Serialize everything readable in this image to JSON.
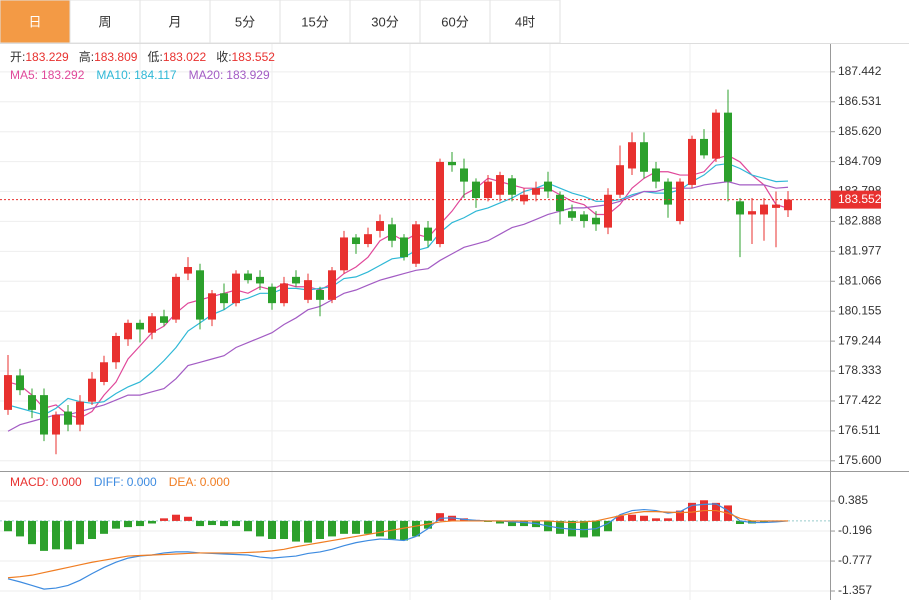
{
  "tabs": [
    "日",
    "周",
    "月",
    "5分",
    "15分",
    "30分",
    "60分",
    "4时"
  ],
  "info": [
    {
      "label": "开:",
      "value": "183.229"
    },
    {
      "label": "高:",
      "value": "183.809"
    },
    {
      "label": "低:",
      "value": "183.022"
    },
    {
      "label": "收:",
      "value": "183.552"
    }
  ],
  "chart_data": [
    {
      "type": "candlestick",
      "up_color": "#e8312f",
      "down_color": "#2ca02c",
      "grid": true,
      "ylim": [
        175.32,
        188.29
      ],
      "yticks": [
        187.442,
        186.531,
        {
          "value": 185.62,
          "label": "185.620"
        },
        184.709,
        183.798,
        182.888,
        181.977,
        181.066,
        180.155,
        179.244,
        178.333,
        177.422,
        176.511,
        {
          "value": 175.6,
          "label": "175.600"
        }
      ],
      "last_price": 183.552,
      "open": [
        177.15,
        178.2,
        177.6,
        177.6,
        176.4,
        177.1,
        176.7,
        177.4,
        178.0,
        178.6,
        179.3,
        179.8,
        179.5,
        180.0,
        179.9,
        181.3,
        181.4,
        179.9,
        180.7,
        180.4,
        181.3,
        181.2,
        180.9,
        180.4,
        181.2,
        180.5,
        180.8,
        180.5,
        181.4,
        182.4,
        182.2,
        182.6,
        182.8,
        182.4,
        181.6,
        182.7,
        182.2,
        184.7,
        184.5,
        184.1,
        183.6,
        183.7,
        184.2,
        183.5,
        183.7,
        184.1,
        183.7,
        183.2,
        183.1,
        183.0,
        182.7,
        183.7,
        184.5,
        185.3,
        184.5,
        184.1,
        182.9,
        184.0,
        185.4,
        184.8,
        186.2,
        183.5,
        183.1,
        183.1,
        183.3,
        183.229
      ],
      "high": [
        178.82,
        178.4,
        177.8,
        177.8,
        177.1,
        177.3,
        177.6,
        178.3,
        178.8,
        179.5,
        179.9,
        179.9,
        180.1,
        180.2,
        181.3,
        181.8,
        181.6,
        180.8,
        181.0,
        181.4,
        181.4,
        181.4,
        181.0,
        181.2,
        181.4,
        181.3,
        180.9,
        181.5,
        182.6,
        182.5,
        182.7,
        183.1,
        183.0,
        182.5,
        182.9,
        182.9,
        184.8,
        185.0,
        184.8,
        184.2,
        184.3,
        184.4,
        184.3,
        183.9,
        184.1,
        184.4,
        183.8,
        183.4,
        183.2,
        183.2,
        183.9,
        185.2,
        185.6,
        185.6,
        184.7,
        184.2,
        184.2,
        185.5,
        185.7,
        186.3,
        186.9,
        183.6,
        183.6,
        183.6,
        183.8,
        183.809
      ],
      "low": [
        177.0,
        177.6,
        176.9,
        176.2,
        175.8,
        176.5,
        176.5,
        177.3,
        177.9,
        178.4,
        179.1,
        179.2,
        179.3,
        179.7,
        179.8,
        181.1,
        179.6,
        179.7,
        180.2,
        180.3,
        181.0,
        180.8,
        180.2,
        180.3,
        180.9,
        180.4,
        180.0,
        180.4,
        181.3,
        181.9,
        182.1,
        182.4,
        182.1,
        181.7,
        181.5,
        182.1,
        182.1,
        184.4,
        183.6,
        183.3,
        183.5,
        183.5,
        183.5,
        183.4,
        183.5,
        183.6,
        182.8,
        182.9,
        182.7,
        182.6,
        182.5,
        183.6,
        184.3,
        184.2,
        183.9,
        183.0,
        182.8,
        183.9,
        184.8,
        184.7,
        183.5,
        181.8,
        182.2,
        182.3,
        182.1,
        183.022
      ],
      "close": [
        178.21,
        177.75,
        177.15,
        176.4,
        177.0,
        176.7,
        177.4,
        178.1,
        178.6,
        179.4,
        179.8,
        179.6,
        180.0,
        179.8,
        181.2,
        181.5,
        179.9,
        180.7,
        180.4,
        181.3,
        181.1,
        181.0,
        180.4,
        181.0,
        181.0,
        181.1,
        180.5,
        181.4,
        182.4,
        182.2,
        182.5,
        182.9,
        182.3,
        181.8,
        182.8,
        182.3,
        184.7,
        184.6,
        184.1,
        183.6,
        184.1,
        184.3,
        183.7,
        183.7,
        183.9,
        183.8,
        183.2,
        183.0,
        182.9,
        182.8,
        183.7,
        184.6,
        185.3,
        184.4,
        184.1,
        183.4,
        184.1,
        185.4,
        184.9,
        186.2,
        184.1,
        183.1,
        183.2,
        183.4,
        183.4,
        183.552
      ],
      "series": [
        {
          "name": "MA5:",
          "color": "#e0489a",
          "current_label": "183.292",
          "values": [
            178.0,
            177.9,
            177.6,
            177.2,
            177.3,
            177.0,
            176.9,
            177.1,
            177.6,
            178.0,
            178.7,
            179.1,
            179.5,
            179.7,
            180.1,
            180.4,
            180.5,
            180.6,
            180.7,
            180.8,
            180.7,
            180.9,
            180.8,
            181.0,
            180.9,
            180.9,
            180.8,
            181.0,
            181.3,
            181.5,
            181.8,
            182.3,
            182.5,
            182.3,
            182.5,
            182.4,
            182.8,
            183.2,
            183.7,
            183.9,
            184.2,
            184.1,
            184.0,
            183.9,
            183.9,
            183.9,
            183.7,
            183.5,
            183.4,
            183.1,
            183.1,
            183.4,
            183.9,
            184.2,
            184.4,
            184.4,
            184.3,
            184.3,
            184.4,
            184.8,
            184.9,
            184.7,
            184.3,
            184.0,
            183.4,
            183.292
          ]
        },
        {
          "name": "MA10:",
          "color": "#2fb8d6",
          "current_label": "184.117",
          "values": [
            177.3,
            177.2,
            177.1,
            177.0,
            177.2,
            177.5,
            177.4,
            177.35,
            177.4,
            177.65,
            177.85,
            178.0,
            178.3,
            178.65,
            179.05,
            179.55,
            179.8,
            180.05,
            180.2,
            180.45,
            180.55,
            180.7,
            180.7,
            180.85,
            180.85,
            180.8,
            180.85,
            180.9,
            181.15,
            181.2,
            181.35,
            181.55,
            181.75,
            181.8,
            182.0,
            182.1,
            182.55,
            182.85,
            183.0,
            183.2,
            183.3,
            183.45,
            183.6,
            183.8,
            183.9,
            184.05,
            183.9,
            183.75,
            183.65,
            183.5,
            183.5,
            183.55,
            183.7,
            183.8,
            183.75,
            183.75,
            183.85,
            184.1,
            184.3,
            184.6,
            184.65,
            184.5,
            184.3,
            184.2,
            184.1,
            184.117
          ]
        },
        {
          "name": "MA20:",
          "color": "#a35cc4",
          "current_label": "183.929",
          "values": [
            176.5,
            176.7,
            176.8,
            176.9,
            177.0,
            177.0,
            177.1,
            177.2,
            177.3,
            177.45,
            177.6,
            177.6,
            177.7,
            177.8,
            178.1,
            178.5,
            178.6,
            178.7,
            178.8,
            179.05,
            179.2,
            179.35,
            179.5,
            179.75,
            179.95,
            180.2,
            180.3,
            180.5,
            180.7,
            180.8,
            180.95,
            181.1,
            181.2,
            181.3,
            181.4,
            181.45,
            181.7,
            181.9,
            182.1,
            182.2,
            182.3,
            182.5,
            182.7,
            182.8,
            182.95,
            183.1,
            183.2,
            183.3,
            183.3,
            183.35,
            183.4,
            183.5,
            183.65,
            183.8,
            183.8,
            183.9,
            183.9,
            183.9,
            184.0,
            184.05,
            184.1,
            184.0,
            184.0,
            184.0,
            183.9,
            183.929
          ]
        }
      ]
    },
    {
      "type": "macd",
      "up_color": "#e8312f",
      "down_color": "#2ca02c",
      "ylim": [
        -1.531,
        0.947
      ],
      "yticks": [
        0.385,
        -0.196,
        -0.777,
        -1.357
      ],
      "histogram": {
        "name": "MACD:",
        "current_label": "0.000",
        "values": [
          -0.2,
          -0.3,
          -0.45,
          -0.58,
          -0.55,
          -0.55,
          -0.45,
          -0.35,
          -0.25,
          -0.15,
          -0.12,
          -0.1,
          -0.05,
          0.05,
          0.12,
          0.08,
          -0.1,
          -0.08,
          -0.1,
          -0.1,
          -0.2,
          -0.3,
          -0.35,
          -0.35,
          -0.4,
          -0.42,
          -0.35,
          -0.3,
          -0.25,
          -0.25,
          -0.25,
          -0.3,
          -0.35,
          -0.38,
          -0.3,
          -0.15,
          0.15,
          0.1,
          0.05,
          0.02,
          -0.02,
          -0.05,
          -0.1,
          -0.1,
          -0.12,
          -0.2,
          -0.25,
          -0.3,
          -0.32,
          -0.3,
          -0.2,
          0.1,
          0.12,
          0.1,
          0.05,
          0.05,
          0.2,
          0.35,
          0.4,
          0.35,
          0.3,
          -0.06,
          -0.05,
          -0.03,
          -0.02,
          0
        ]
      },
      "series": [
        {
          "name": "DIFF:",
          "color": "#3d8be0",
          "current_label": "0.000",
          "values": [
            -1.12,
            -1.18,
            -1.25,
            -1.32,
            -1.3,
            -1.25,
            -1.15,
            -1.02,
            -0.9,
            -0.8,
            -0.72,
            -0.68,
            -0.66,
            -0.62,
            -0.6,
            -0.6,
            -0.62,
            -0.63,
            -0.64,
            -0.65,
            -0.66,
            -0.7,
            -0.72,
            -0.7,
            -0.68,
            -0.63,
            -0.6,
            -0.55,
            -0.48,
            -0.42,
            -0.38,
            -0.35,
            -0.36,
            -0.38,
            -0.3,
            -0.15,
            0.05,
            0.06,
            0.03,
            0.01,
            0,
            0,
            -0.02,
            -0.03,
            -0.05,
            -0.1,
            -0.14,
            -0.16,
            -0.17,
            -0.15,
            -0.05,
            0.12,
            0.2,
            0.22,
            0.2,
            0.15,
            0.18,
            0.3,
            0.32,
            0.33,
            0.2,
            0,
            -0.03,
            -0.03,
            -0.02,
            0
          ]
        },
        {
          "name": "DEA:",
          "color": "#f07d22",
          "current_label": "0.000",
          "values": [
            -1.1,
            -1.08,
            -1.05,
            -1.0,
            -0.95,
            -0.9,
            -0.85,
            -0.8,
            -0.76,
            -0.72,
            -0.68,
            -0.67,
            -0.66,
            -0.65,
            -0.64,
            -0.63,
            -0.62,
            -0.62,
            -0.62,
            -0.62,
            -0.61,
            -0.6,
            -0.58,
            -0.55,
            -0.5,
            -0.46,
            -0.42,
            -0.38,
            -0.34,
            -0.3,
            -0.26,
            -0.22,
            -0.18,
            -0.14,
            -0.1,
            -0.06,
            -0.02,
            0,
            0,
            0,
            0,
            0,
            0,
            0,
            0,
            0,
            -0.02,
            -0.03,
            -0.02,
            0,
            0.05,
            0.1,
            0.15,
            0.18,
            0.18,
            0.17,
            0.16,
            0.17,
            0.2,
            0.2,
            0.15,
            0.05,
            0,
            0,
            0,
            0
          ]
        }
      ]
    }
  ]
}
